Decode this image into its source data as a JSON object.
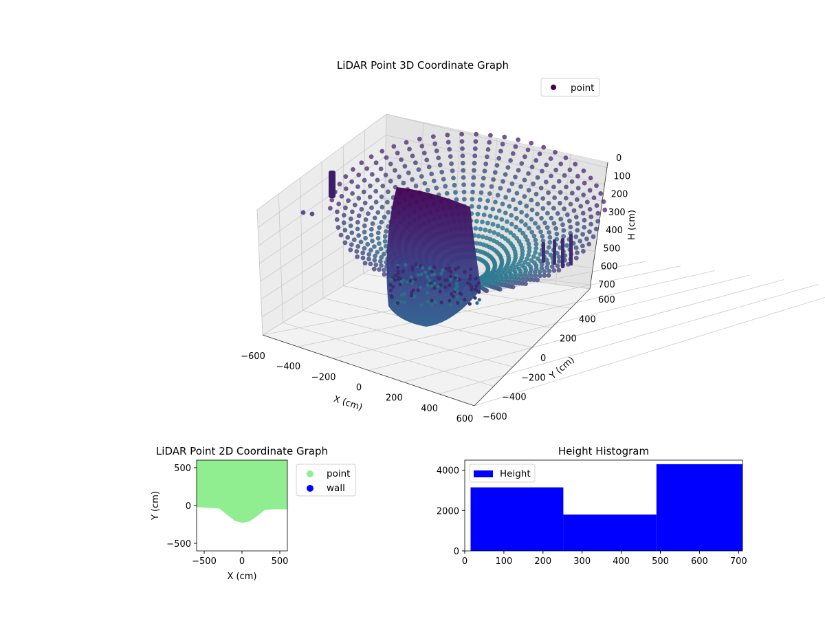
{
  "colors": {
    "point_cmap_top": "#440154",
    "point_cmap_mid": "#3b528b",
    "point_cmap_low": "#2c728e",
    "point_2d": "#90ee90",
    "wall_2d": "#0000ff",
    "histogram": "#0000ff"
  },
  "chart_data": [
    {
      "type": "scatter3d",
      "title": "LiDAR Point 3D Coordinate Graph",
      "xlabel": "X (cm)",
      "ylabel": "Y (cm)",
      "zlabel": "H (cm)",
      "xlim": [
        -600,
        600
      ],
      "ylim": [
        -600,
        600
      ],
      "zlim": [
        0,
        700
      ],
      "z_inverted": true,
      "x_ticks": [
        "−600",
        "−400",
        "−200",
        "0",
        "200",
        "400",
        "600"
      ],
      "y_ticks": [
        "−600",
        "−400",
        "−200",
        "0",
        "200",
        "400",
        "600"
      ],
      "z_ticks": [
        "0",
        "100",
        "200",
        "300",
        "400",
        "500",
        "600",
        "700"
      ],
      "legend": [
        "point"
      ],
      "legend_position": "top-right",
      "grid": true,
      "description_of_data": "bowl-shaped point cloud of concentric rings with a central wall surface"
    },
    {
      "type": "scatter",
      "title": "LiDAR Point 2D Coordinate Graph",
      "xlabel": "X (cm)",
      "ylabel": "Y (cm)",
      "xlim": [
        -600,
        600
      ],
      "ylim": [
        -600,
        600
      ],
      "x_ticks": [
        "−500",
        "0",
        "500"
      ],
      "y_ticks": [
        "−500",
        "0",
        "500"
      ],
      "legend": [
        "point",
        "wall"
      ],
      "legend_position": "outside-right",
      "series": [
        {
          "name": "point",
          "region": "filled area above curved boundary",
          "boundary": [
            [
              -600,
              -20
            ],
            [
              -300,
              -40
            ],
            [
              -200,
              -120
            ],
            [
              -100,
              -200
            ],
            [
              0,
              -230
            ],
            [
              100,
              -210
            ],
            [
              200,
              -140
            ],
            [
              300,
              -60
            ],
            [
              400,
              -50
            ],
            [
              600,
              -50
            ]
          ]
        },
        {
          "name": "wall",
          "points": []
        }
      ]
    },
    {
      "type": "bar",
      "title": "Height Histogram",
      "xlim": [
        0,
        710
      ],
      "ylim": [
        0,
        4500
      ],
      "x_ticks": [
        "0",
        "100",
        "200",
        "300",
        "400",
        "500",
        "600",
        "700"
      ],
      "y_ticks": [
        "0",
        "2000",
        "4000"
      ],
      "legend": [
        "Height"
      ],
      "legend_position": "upper-left",
      "bins": [
        {
          "x0": 15,
          "x1": 252,
          "count": 3150
        },
        {
          "x0": 252,
          "x1": 490,
          "count": 1800
        },
        {
          "x0": 490,
          "x1": 710,
          "count": 4300
        }
      ]
    }
  ]
}
